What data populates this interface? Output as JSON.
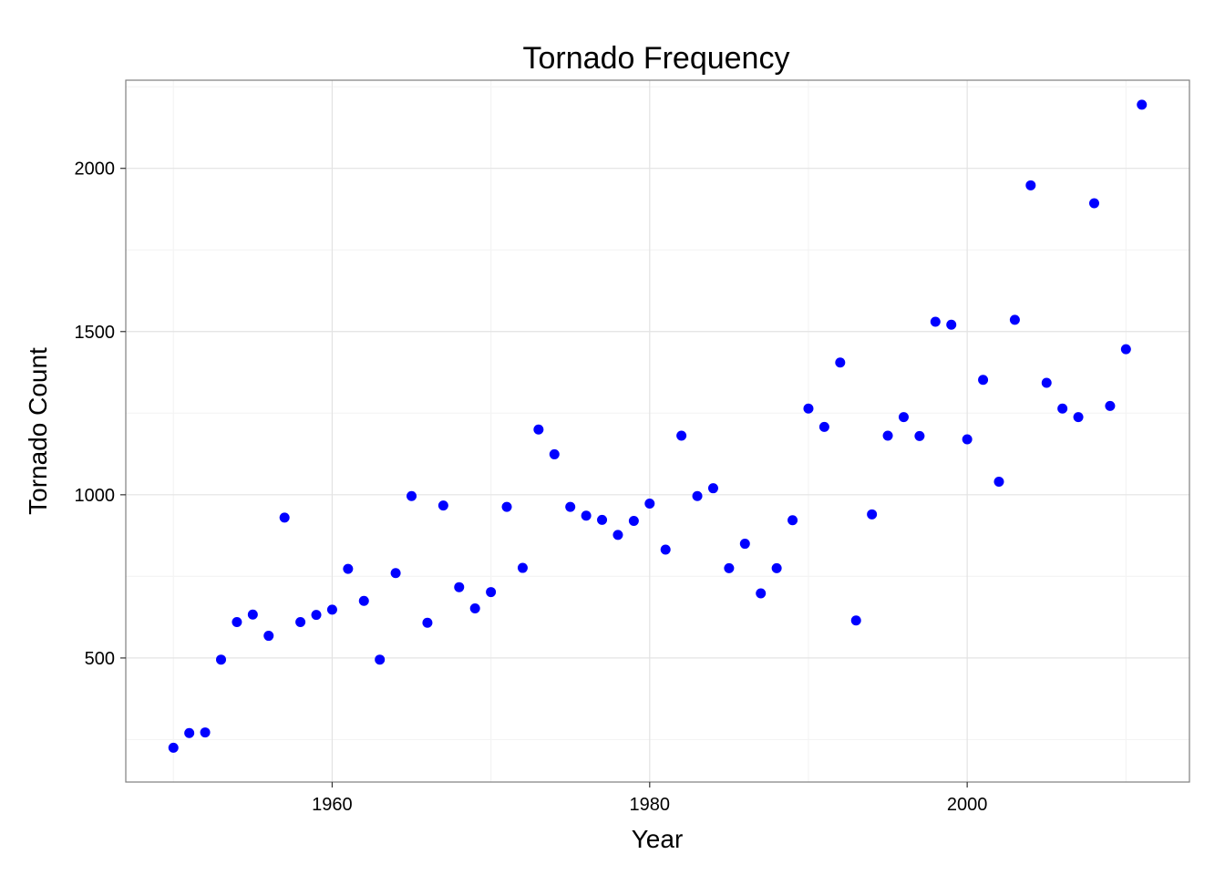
{
  "chart_data": {
    "type": "scatter",
    "title": "Tornado Frequency",
    "xlabel": "Year",
    "ylabel": "Tornado Count",
    "xlim": [
      1947,
      2014
    ],
    "ylim": [
      120,
      2270
    ],
    "x_ticks": [
      1960,
      1980,
      2000
    ],
    "y_ticks": [
      500,
      1000,
      1500,
      2000
    ],
    "x_minor_ticks": [
      1950,
      1970,
      1990,
      2010
    ],
    "y_minor_ticks": [
      250,
      750,
      1250,
      1750,
      2250
    ],
    "grid": true,
    "point_color": "#0000ff",
    "series": [
      {
        "x": [
          1950,
          1951,
          1952,
          1953,
          1954,
          1955,
          1956,
          1957,
          1958,
          1959,
          1960,
          1961,
          1962,
          1963,
          1964,
          1965,
          1966,
          1967,
          1968,
          1969,
          1970,
          1971,
          1972,
          1973,
          1974,
          1975,
          1976,
          1977,
          1978,
          1979,
          1980,
          1981,
          1982,
          1983,
          1984,
          1985,
          1986,
          1987,
          1988,
          1989,
          1990,
          1991,
          1992,
          1993,
          1994,
          1995,
          1996,
          1997,
          1998,
          1999,
          2000,
          2001,
          2002,
          2003,
          2004,
          2005,
          2006,
          2007,
          2008,
          2009,
          2010,
          2011
        ],
        "y": [
          225,
          270,
          272,
          495,
          610,
          633,
          568,
          930,
          610,
          632,
          648,
          773,
          675,
          495,
          760,
          996,
          608,
          967,
          717,
          652,
          702,
          963,
          776,
          1200,
          1124,
          963,
          936,
          923,
          877,
          920,
          973,
          832,
          1181,
          996,
          1020,
          775,
          850,
          698,
          775,
          922,
          1264,
          1208,
          1405,
          615,
          940,
          1181,
          1238,
          1180,
          1530,
          1521,
          1170,
          1352,
          1040,
          1536,
          1948,
          1343,
          1264,
          1238,
          1893,
          1272,
          1446,
          2195
        ]
      }
    ]
  }
}
